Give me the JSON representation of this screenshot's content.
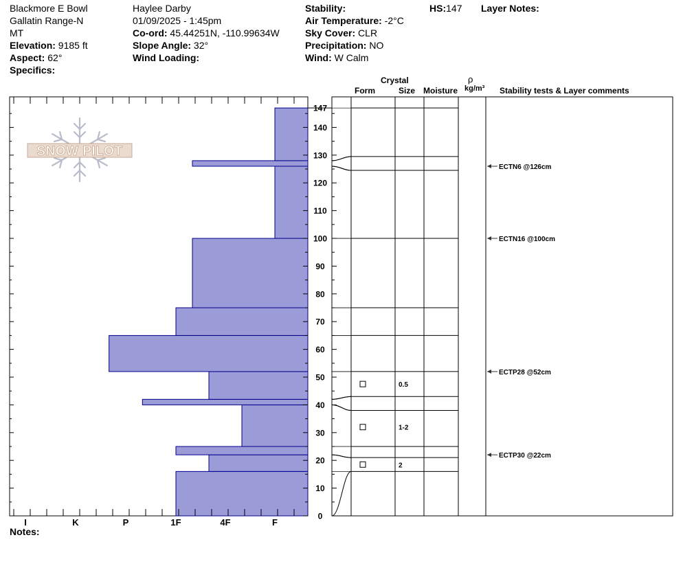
{
  "header": {
    "location": "Blackmore E Bowl",
    "range": "Gallatin Range-N",
    "state": "MT",
    "elevation_label": "Elevation:",
    "elevation_value": " 9185 ft",
    "aspect_label": "Aspect:",
    "aspect_value": " 62°",
    "specifics_label": "Specifics:",
    "observer": "Haylee Darby",
    "datetime": "01/09/2025 - 1:45pm",
    "coord_label": "Co-ord:",
    "coord_value": " 45.44251N, -110.99634W",
    "slope_label": "Slope Angle:",
    "slope_value": " 32°",
    "wind_loading_label": "Wind Loading:",
    "stability_label": "Stability:",
    "air_temp_label": "Air Temperature:",
    "air_temp_value": " -2°C",
    "sky_label": "Sky Cover:",
    "sky_value": " CLR",
    "precip_label": "Precipitation:",
    "precip_value": " NO",
    "wind_label": "Wind:",
    "wind_value": "  W Calm",
    "hs_label": "HS:",
    "hs_value": "147",
    "layer_notes_label": "Layer Notes:"
  },
  "columns": {
    "crystal": "Crystal",
    "form": "Form",
    "size": "Size",
    "moisture": "Moisture",
    "rho": "ρ",
    "density_unit": "kg/m³",
    "stability": "Stability tests & Layer comments"
  },
  "notes_label": "Notes:",
  "logo_text": "SNOW PILOT",
  "colors": {
    "bar_fill": "#9b9bd8",
    "bar_stroke": "#00008b",
    "axis": "#000000"
  },
  "chart_data": {
    "type": "bar",
    "orientation": "horizontal",
    "y_unit": "cm",
    "ylim": [
      0,
      147
    ],
    "y_ticks": [
      0,
      10,
      20,
      30,
      40,
      50,
      60,
      70,
      80,
      90,
      100,
      110,
      120,
      130,
      140,
      147
    ],
    "hardness_scale": [
      "I",
      "K",
      "P",
      "1F",
      "4F",
      "F"
    ],
    "layers": [
      {
        "bottom": 0,
        "top": 16,
        "hardness": "1F"
      },
      {
        "bottom": 16,
        "top": 22,
        "hardness": "4F-"
      },
      {
        "bottom": 22,
        "top": 25,
        "hardness": "1F"
      },
      {
        "bottom": 25,
        "top": 40,
        "hardness": "4F+"
      },
      {
        "bottom": 40,
        "top": 42,
        "hardness": "P+"
      },
      {
        "bottom": 42,
        "top": 52,
        "hardness": "4F-"
      },
      {
        "bottom": 52,
        "top": 65,
        "hardness": "P-"
      },
      {
        "bottom": 65,
        "top": 75,
        "hardness": "1F"
      },
      {
        "bottom": 75,
        "top": 100,
        "hardness": "1F+"
      },
      {
        "bottom": 100,
        "top": 126,
        "hardness": "F"
      },
      {
        "bottom": 126,
        "top": 128,
        "hardness": "1F+"
      },
      {
        "bottom": 128,
        "top": 147,
        "hardness": "F"
      }
    ],
    "layer_boundaries": [
      16,
      21,
      25,
      38,
      43,
      52,
      65,
      75,
      100,
      124.5,
      129.5,
      147
    ],
    "crystals": [
      {
        "height": 18.5,
        "size": "2"
      },
      {
        "height": 32,
        "size": "1-2"
      },
      {
        "height": 47.5,
        "size": "0.5"
      }
    ],
    "tests": [
      {
        "height": 126,
        "label": "ECTN6 @126cm"
      },
      {
        "height": 100,
        "label": "ECTN16 @100cm"
      },
      {
        "height": 52,
        "label": "ECTP28 @52cm"
      },
      {
        "height": 22,
        "label": "ECTP30 @22cm"
      }
    ]
  }
}
